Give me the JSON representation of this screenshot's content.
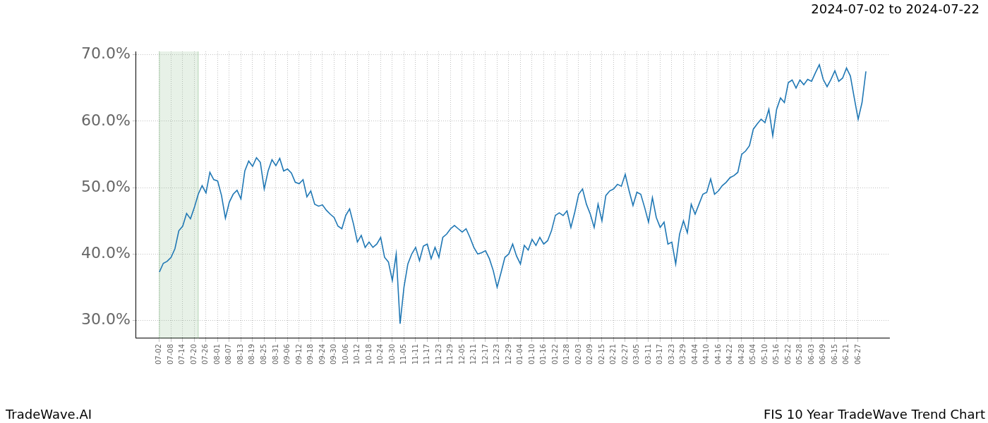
{
  "chart_data": {
    "type": "line",
    "title": "2024-07-02 to 2024-07-22",
    "footer": [
      "TradeWave.AI",
      "FIS 10 Year TradeWave Trend Chart"
    ],
    "shaded_range": {
      "from": "07-02",
      "to": "07-22"
    },
    "color": "#1f77b4",
    "grid": true,
    "categories": [
      "07-02",
      null,
      null,
      "07-08",
      null,
      null,
      "07-14",
      null,
      null,
      "07-20",
      null,
      null,
      "07-26",
      null,
      null,
      "08-01",
      null,
      null,
      "08-07",
      null,
      null,
      "08-13",
      null,
      null,
      "08-19",
      null,
      null,
      "08-25",
      null,
      null,
      "08-31",
      null,
      null,
      "09-06",
      null,
      null,
      "09-12",
      null,
      null,
      "09-18",
      null,
      null,
      "09-24",
      null,
      null,
      "09-30",
      null,
      null,
      "10-06",
      null,
      null,
      "10-12",
      null,
      null,
      "10-18",
      null,
      null,
      "10-24",
      null,
      null,
      "10-30",
      null,
      null,
      "11-05",
      null,
      null,
      "11-11",
      null,
      null,
      "11-17",
      null,
      null,
      "11-23",
      null,
      null,
      "11-29",
      null,
      null,
      "12-05",
      null,
      null,
      "12-11",
      null,
      null,
      "12-17",
      null,
      null,
      "12-23",
      null,
      null,
      "12-29",
      null,
      null,
      "01-04",
      null,
      null,
      "01-10",
      null,
      null,
      "01-16",
      null,
      null,
      "01-22",
      null,
      null,
      "01-28",
      null,
      null,
      "02-03",
      null,
      null,
      "02-09",
      null,
      null,
      "02-15",
      null,
      null,
      "02-21",
      null,
      null,
      "02-27",
      null,
      null,
      "03-05",
      null,
      null,
      "03-11",
      null,
      null,
      "03-17",
      null,
      null,
      "03-23",
      null,
      null,
      "03-29",
      null,
      null,
      "04-04",
      null,
      null,
      "04-10",
      null,
      null,
      "04-16",
      null,
      null,
      "04-22",
      null,
      null,
      "04-28",
      null,
      null,
      "05-04",
      null,
      null,
      "05-10",
      null,
      null,
      "05-16",
      null,
      null,
      "05-22",
      null,
      null,
      "05-28",
      null,
      null,
      "06-03",
      null,
      null,
      "06-09",
      null,
      null,
      "06-15",
      null,
      null,
      "06-21",
      null,
      null,
      "06-27",
      null,
      null
    ],
    "values": [
      37.3,
      38.6,
      38.9,
      39.5,
      40.8,
      43.5,
      44.2,
      46.1,
      45.3,
      47.0,
      49.0,
      50.3,
      49.2,
      52.3,
      51.2,
      51.0,
      48.8,
      45.4,
      47.8,
      49.0,
      49.6,
      48.3,
      52.5,
      54.0,
      53.2,
      54.5,
      53.8,
      49.8,
      52.5,
      54.2,
      53.3,
      54.4,
      52.5,
      52.8,
      52.2,
      50.8,
      50.6,
      51.2,
      48.6,
      49.5,
      47.5,
      47.2,
      47.4,
      46.6,
      46.0,
      45.5,
      44.2,
      43.8,
      45.8,
      46.8,
      44.5,
      41.8,
      42.8,
      41.0,
      41.8,
      41.0,
      41.5,
      42.5,
      39.5,
      38.8,
      36.0,
      40.0,
      29.5,
      35.0,
      38.5,
      40.0,
      41.0,
      39.0,
      41.2,
      41.5,
      39.3,
      41.0,
      39.5,
      42.5,
      43.0,
      43.8,
      44.3,
      43.8,
      43.3,
      43.8,
      42.5,
      41.0,
      40.0,
      40.2,
      40.5,
      39.3,
      37.5,
      35.0,
      37.2,
      39.5,
      40.0,
      41.5,
      39.7,
      38.5,
      41.3,
      40.6,
      42.2,
      41.3,
      42.5,
      41.5,
      42.0,
      43.5,
      45.8,
      46.2,
      45.8,
      46.5,
      44.0,
      46.3,
      49.0,
      49.8,
      47.5,
      46.0,
      44.0,
      47.5,
      45.0,
      48.8,
      49.5,
      49.8,
      50.5,
      50.2,
      52.0,
      49.5,
      47.3,
      49.3,
      49.0,
      47.0,
      44.8,
      48.5,
      45.5,
      44.0,
      44.8,
      41.5,
      41.8,
      38.5,
      43.0,
      45.0,
      43.2,
      47.5,
      46.0,
      47.5,
      49.0,
      49.3,
      51.3,
      49.0,
      49.5,
      50.3,
      50.8,
      51.5,
      51.8,
      52.3,
      55.0,
      55.5,
      56.3,
      58.8,
      59.6,
      60.3,
      59.8,
      61.8,
      57.8,
      61.8,
      63.5,
      62.8,
      65.8,
      66.2,
      65.0,
      66.2,
      65.5,
      66.3,
      66.0,
      67.3,
      68.5,
      66.3,
      65.2,
      66.3,
      67.6,
      66.0,
      66.5,
      68.0,
      66.8,
      63.5,
      60.3,
      62.8,
      67.5
    ],
    "ylim": [
      27.3,
      70.5
    ],
    "yticks": [
      {
        "value": 30,
        "label": "30.0%"
      },
      {
        "value": 40,
        "label": "40.0%"
      },
      {
        "value": 50,
        "label": "50.0%"
      },
      {
        "value": 60,
        "label": "60.0%"
      },
      {
        "value": 70,
        "label": "70.0%"
      }
    ]
  }
}
